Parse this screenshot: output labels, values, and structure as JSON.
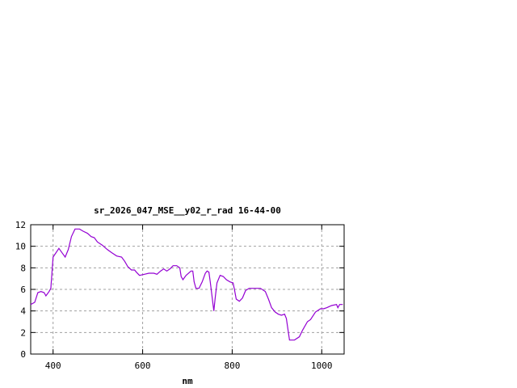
{
  "chart_data": {
    "type": "line",
    "title": "sr_2026_047_MSE__y02_r_rad 16-44-00",
    "xlabel": "nm",
    "ylabel": "",
    "xlim": [
      350,
      1050
    ],
    "ylim": [
      0,
      12
    ],
    "xticks": [
      400,
      600,
      800,
      1000
    ],
    "yticks": [
      0,
      2,
      4,
      6,
      8,
      10,
      12
    ],
    "grid": true,
    "legend": "none",
    "line_color": "#9400d3",
    "series": [
      {
        "x": [
          348,
          359,
          366,
          373,
          380,
          384,
          391,
          395,
          400,
          413,
          420,
          427,
          434,
          441,
          449,
          459,
          467,
          477,
          485,
          492,
          499,
          510,
          521,
          531,
          542,
          553,
          560,
          567,
          575,
          582,
          586,
          593,
          604,
          614,
          625,
          632,
          640,
          647,
          654,
          661,
          668,
          676,
          683,
          686,
          690,
          697,
          708,
          712,
          715,
          719,
          726,
          733,
          740,
          744,
          748,
          751,
          759,
          762,
          766,
          773,
          780,
          787,
          795,
          802,
          805,
          809,
          816,
          823,
          830,
          838,
          845,
          852,
          863,
          874,
          881,
          888,
          896,
          903,
          910,
          917,
          921,
          928,
          939,
          950,
          957,
          968,
          975,
          986,
          997,
          1004,
          1011,
          1022,
          1033,
          1036,
          1040,
          1047
        ],
        "y": [
          4.6,
          4.8,
          5.7,
          5.8,
          5.7,
          5.4,
          5.8,
          6.1,
          9.0,
          9.8,
          9.4,
          9.0,
          9.7,
          10.9,
          11.6,
          11.6,
          11.4,
          11.2,
          10.9,
          10.8,
          10.4,
          10.1,
          9.7,
          9.4,
          9.1,
          9.0,
          8.6,
          8.1,
          7.8,
          7.8,
          7.6,
          7.3,
          7.4,
          7.5,
          7.5,
          7.4,
          7.7,
          7.9,
          7.7,
          7.9,
          8.2,
          8.2,
          8.0,
          7.2,
          6.9,
          7.3,
          7.7,
          7.7,
          6.7,
          6.1,
          6.1,
          6.7,
          7.5,
          7.7,
          7.6,
          6.7,
          4.0,
          5.2,
          6.6,
          7.3,
          7.2,
          6.9,
          6.7,
          6.6,
          6.0,
          5.1,
          4.9,
          5.2,
          5.9,
          6.1,
          6.1,
          6.1,
          6.1,
          5.8,
          5.1,
          4.3,
          3.9,
          3.7,
          3.6,
          3.7,
          3.3,
          1.3,
          1.3,
          1.6,
          2.2,
          3.0,
          3.2,
          3.9,
          4.2,
          4.2,
          4.3,
          4.5,
          4.6,
          4.3,
          4.6,
          4.6
        ]
      }
    ]
  }
}
